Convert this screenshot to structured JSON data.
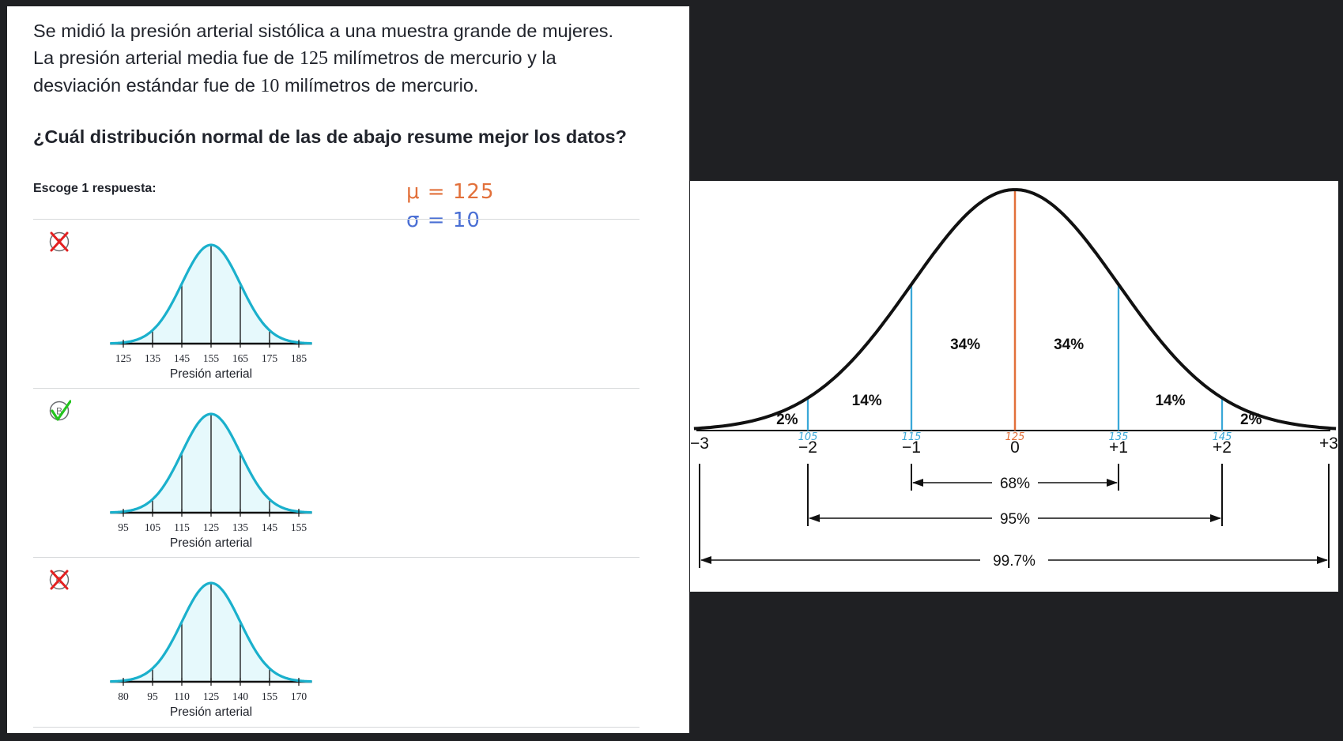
{
  "question": {
    "prompt_parts": [
      "Se midió la presión arterial sistólica a una muestra grande de mujeres. La presión arterial media fue de ",
      "125",
      " milímetros de mercurio y la desviación estándar fue de ",
      "10",
      " milímetros de mercurio."
    ],
    "ask": "¿Cuál distribución normal de las de abajo resume mejor los datos?",
    "choose_label": "Escoge 1 respuesta:"
  },
  "handwritten_notes": {
    "mu": "μ = 125",
    "sigma": "σ = 10"
  },
  "choices": [
    {
      "letter": "A",
      "state": "incorrect",
      "ticks": [
        "125",
        "135",
        "145",
        "155",
        "165",
        "175",
        "185"
      ],
      "xlabel": "Presión arterial"
    },
    {
      "letter": "B",
      "state": "correct",
      "ticks": [
        "95",
        "105",
        "115",
        "125",
        "135",
        "145",
        "155"
      ],
      "xlabel": "Presión arterial"
    },
    {
      "letter": "C",
      "state": "incorrect",
      "ticks": [
        "80",
        "95",
        "110",
        "125",
        "140",
        "155",
        "170"
      ],
      "xlabel": "Presión arterial"
    }
  ],
  "colors": {
    "curve": "#1ab0cc",
    "curve_fill": "#e6f9fc",
    "incorrect": "#e32020",
    "correct": "#24c41e",
    "mean_line": "#e2703a",
    "sd_line": "#3aa8d8",
    "annotation_blue": "#3aa8d8",
    "annotation_orange": "#e2703a"
  },
  "chart_data": {
    "type": "area",
    "x": [
      -3,
      -2,
      -1,
      0,
      1,
      2,
      3
    ],
    "x_tick_labels": [
      "−3",
      "−2",
      "−1",
      "0",
      "+1",
      "+2",
      "+3"
    ],
    "handwritten_tick_labels": [
      "",
      "105",
      "115",
      "125",
      "135",
      "145",
      ""
    ],
    "region_percentages": [
      "2%",
      "14%",
      "34%",
      "34%",
      "14%",
      "2%"
    ],
    "spans": [
      {
        "label": "68%",
        "from": -1,
        "to": 1
      },
      {
        "label": "95%",
        "from": -2,
        "to": 2
      },
      {
        "label": "99.7%",
        "from": -3,
        "to": 3
      }
    ]
  }
}
